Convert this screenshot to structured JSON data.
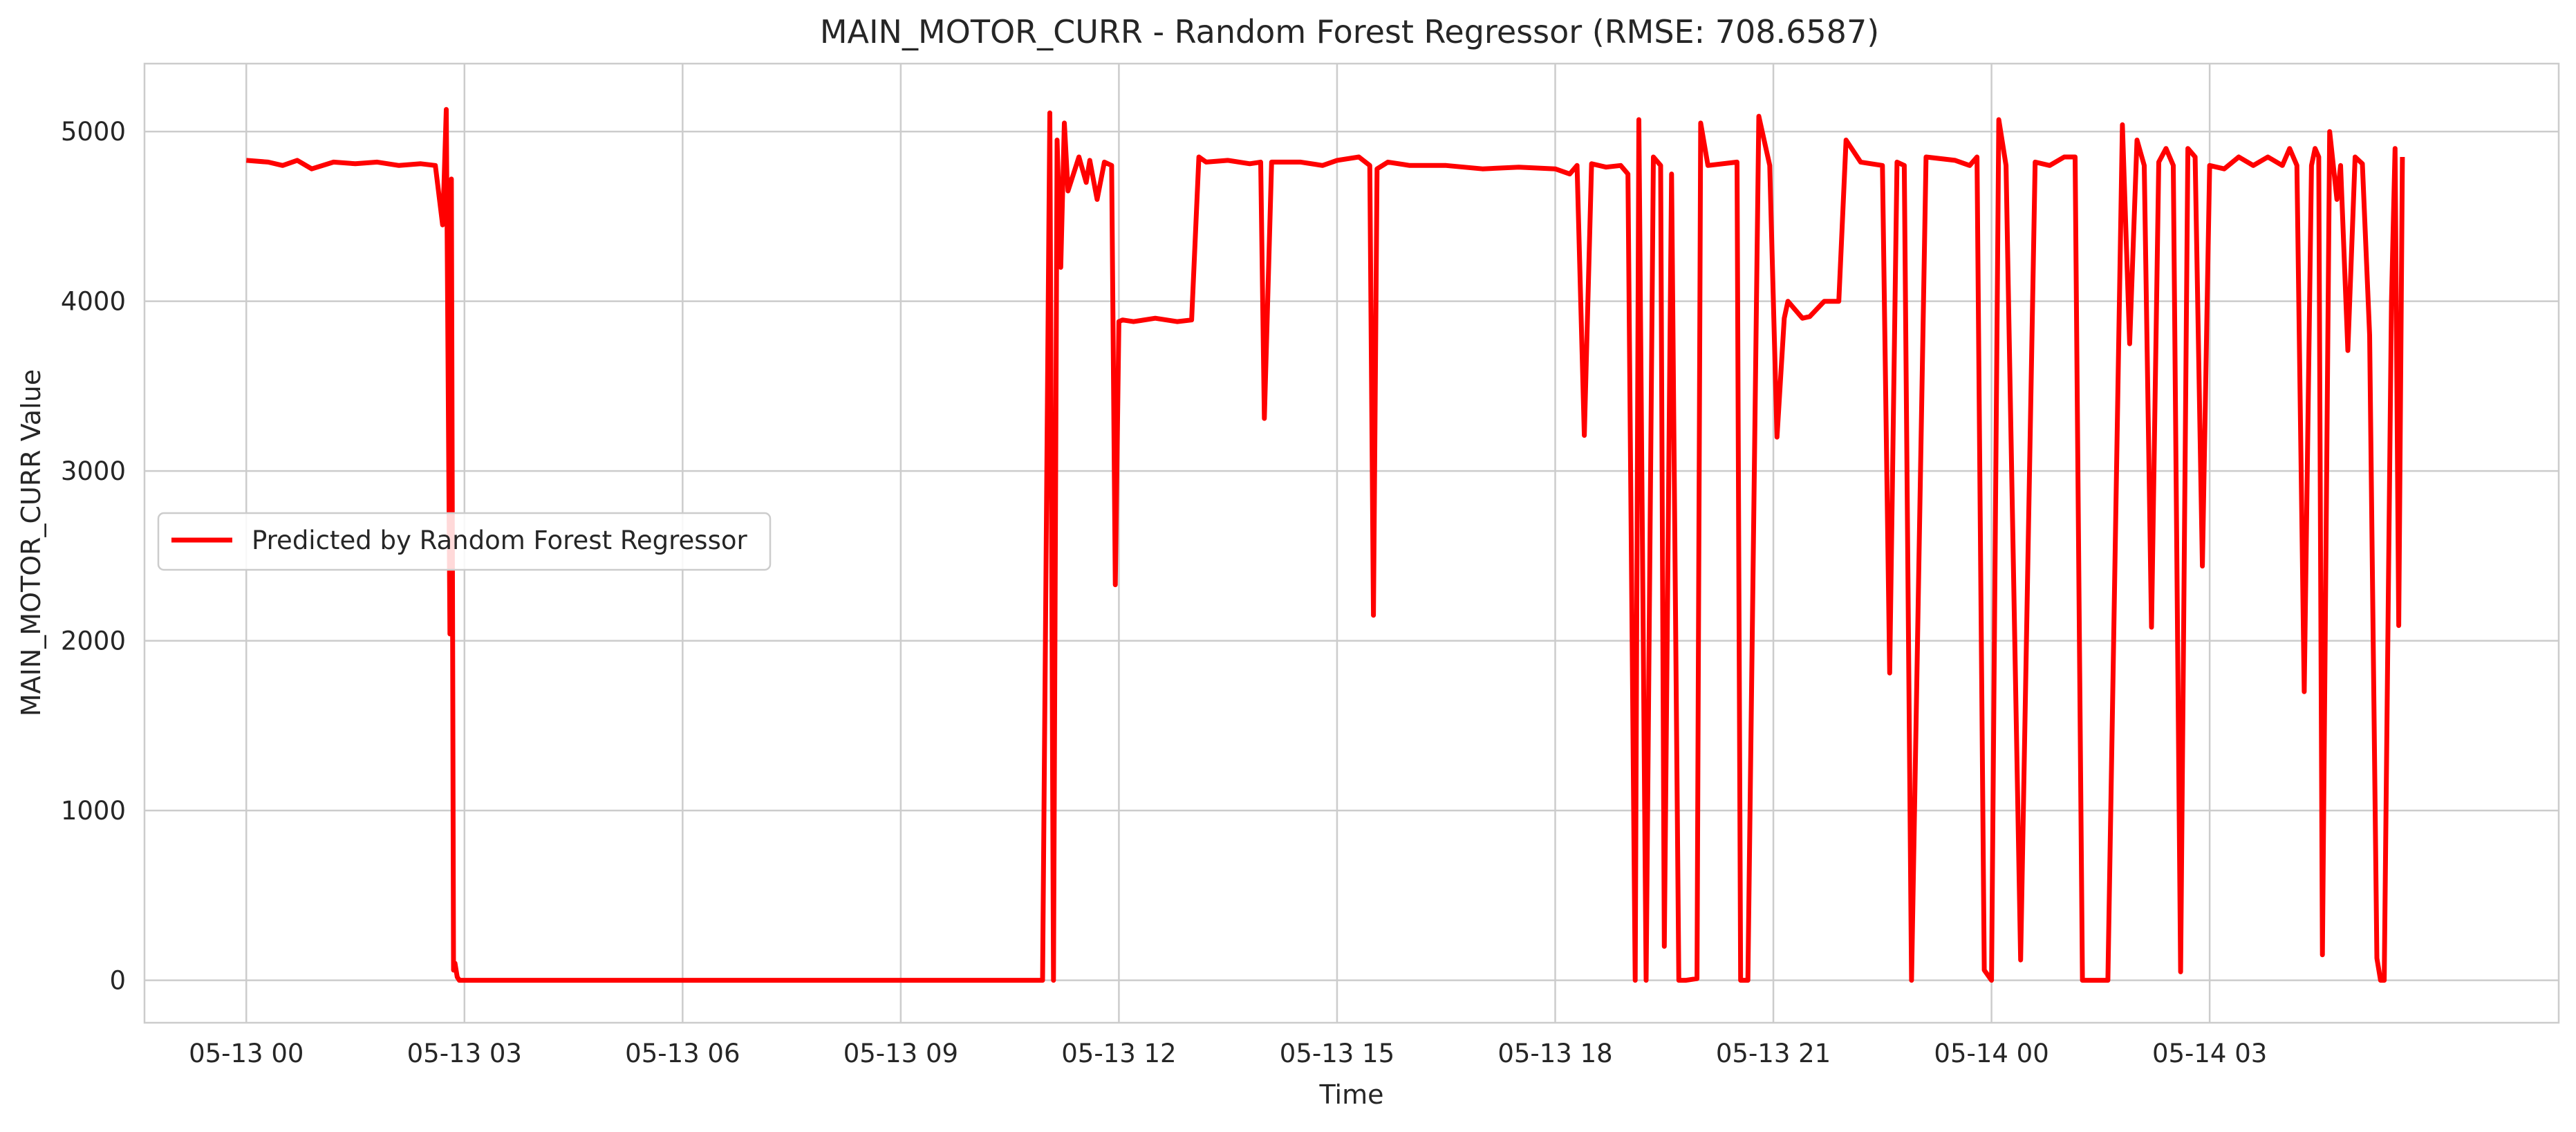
{
  "chart_data": {
    "type": "line",
    "title": "MAIN_MOTOR_CURR - Random Forest Regressor (RMSE: 708.6587)",
    "xlabel": "Time",
    "ylabel": "MAIN_MOTOR_CURR Value",
    "x_ticks": [
      "05-13 00",
      "05-13 03",
      "05-13 06",
      "05-13 09",
      "05-13 12",
      "05-13 15",
      "05-13 18",
      "05-13 21",
      "05-14 00",
      "05-14 03"
    ],
    "y_ticks": [
      0,
      1000,
      2000,
      3000,
      4000,
      5000
    ],
    "xlim_hours": [
      -1.4,
      31.8
    ],
    "ylim": [
      -250,
      5400
    ],
    "grid": true,
    "legend_position": "center-left",
    "series": [
      {
        "name": "Predicted by Random Forest Regressor",
        "color": "#ff0000",
        "x_hours": [
          0,
          0.3,
          0.5,
          0.7,
          0.9,
          1.2,
          1.5,
          1.8,
          2.1,
          2.4,
          2.6,
          2.7,
          2.72,
          2.75,
          2.8,
          2.82,
          2.85,
          2.87,
          2.9,
          2.93,
          3.0,
          5.0,
          8.0,
          10.95,
          11.05,
          11.1,
          11.15,
          11.2,
          11.25,
          11.3,
          11.45,
          11.55,
          11.6,
          11.7,
          11.8,
          11.9,
          11.95,
          12.0,
          12.05,
          12.2,
          12.5,
          12.8,
          13.0,
          13.1,
          13.2,
          13.5,
          13.8,
          13.95,
          14.0,
          14.1,
          14.5,
          14.8,
          15.0,
          15.3,
          15.45,
          15.5,
          15.55,
          15.7,
          16.0,
          16.5,
          17.0,
          17.5,
          18.0,
          18.2,
          18.3,
          18.4,
          18.5,
          18.7,
          18.9,
          19.0,
          19.1,
          19.15,
          19.25,
          19.35,
          19.45,
          19.5,
          19.6,
          19.7,
          19.8,
          19.95,
          20.0,
          20.1,
          20.5,
          20.55,
          20.65,
          20.8,
          20.95,
          21.05,
          21.15,
          21.2,
          21.4,
          21.5,
          21.7,
          21.9,
          22.0,
          22.2,
          22.5,
          22.6,
          22.7,
          22.8,
          22.9,
          23.1,
          23.5,
          23.7,
          23.8,
          23.9,
          24.0,
          24.1,
          24.2,
          24.4,
          24.6,
          24.8,
          25.0,
          25.15,
          25.25,
          25.6,
          25.8,
          25.9,
          26.0,
          26.1,
          26.2,
          26.3,
          26.4,
          26.5,
          26.6,
          26.7,
          26.8,
          26.9,
          27.0,
          27.2,
          27.4,
          27.6,
          27.8,
          28.0,
          28.1,
          28.2,
          28.3,
          28.4,
          28.45,
          28.5,
          28.55,
          28.65,
          28.75,
          28.8,
          28.9,
          29.0,
          29.1,
          29.2,
          29.3,
          29.35,
          29.4,
          29.5,
          29.55,
          29.6,
          29.65
        ],
        "y": [
          4830,
          4820,
          4800,
          4830,
          4780,
          4820,
          4810,
          4820,
          4800,
          4810,
          4800,
          4450,
          4700,
          5130,
          2040,
          4720,
          60,
          100,
          20,
          0,
          0,
          0,
          0,
          0,
          5110,
          0,
          4950,
          4200,
          5050,
          4650,
          4850,
          4700,
          4830,
          4600,
          4820,
          4800,
          2330,
          3880,
          3890,
          3880,
          3900,
          3880,
          3890,
          4850,
          4820,
          4830,
          4810,
          4820,
          3310,
          4820,
          4820,
          4800,
          4830,
          4850,
          4800,
          2150,
          4780,
          4820,
          4800,
          4800,
          4780,
          4790,
          4780,
          4750,
          4800,
          3210,
          4810,
          4790,
          4800,
          4750,
          0,
          5070,
          0,
          4850,
          4800,
          200,
          4750,
          0,
          0,
          10,
          5050,
          4800,
          4820,
          0,
          0,
          5090,
          4800,
          3200,
          3900,
          4000,
          3900,
          3910,
          4000,
          4000,
          4950,
          4820,
          4800,
          1810,
          4820,
          4800,
          0,
          4850,
          4830,
          4800,
          4850,
          60,
          0,
          5070,
          4800,
          120,
          4820,
          4800,
          4850,
          4850,
          0,
          0,
          5040,
          3750,
          4950,
          4800,
          2080,
          4820,
          4900,
          4800,
          50,
          4900,
          4850,
          2440,
          4800,
          4780,
          4850,
          4800,
          4850,
          4800,
          4900,
          4800,
          1700,
          4800,
          4900,
          4850,
          150,
          5000,
          4600,
          4800,
          3710,
          4850,
          4810,
          3800,
          130,
          0,
          0,
          4000,
          4900,
          2090,
          4850
        ]
      }
    ]
  }
}
